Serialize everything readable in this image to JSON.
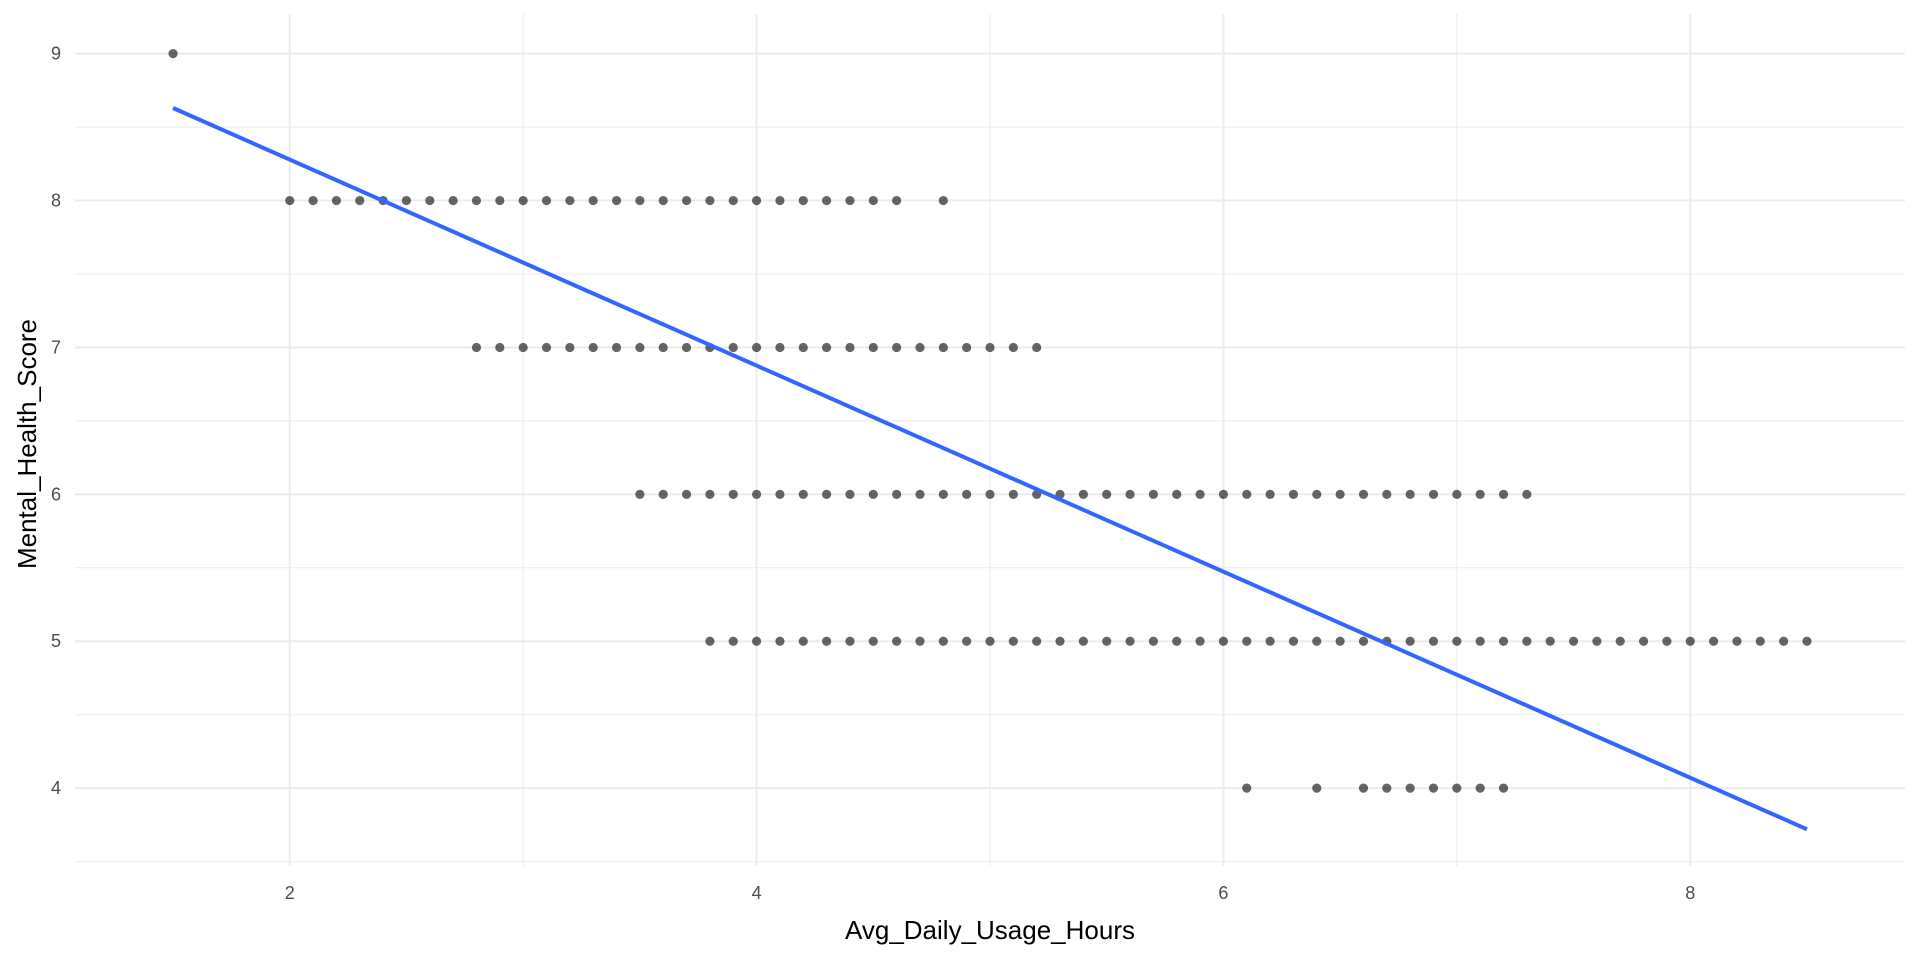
{
  "chart_data": {
    "type": "scatter",
    "title": "",
    "xlabel": "Avg_Daily_Usage_Hours",
    "ylabel": "Mental_Health_Score",
    "xlim": [
      1.08,
      8.92
    ],
    "ylim": [
      3.47,
      9.27
    ],
    "x_ticks": [
      "2",
      "4",
      "6",
      "8"
    ],
    "y_ticks": [
      "4",
      "5",
      "6",
      "7",
      "8",
      "9"
    ],
    "grid": true,
    "colors": {
      "points": "#000000",
      "trend": "#3366ff",
      "grid": "#ebebeb",
      "tick_text": "#4d4d4d"
    },
    "series": [
      {
        "points": [
          [
            1.5,
            9
          ]
        ]
      },
      {
        "points": [
          [
            2.0,
            8
          ],
          [
            2.1,
            8
          ],
          [
            2.2,
            8
          ],
          [
            2.3,
            8
          ],
          [
            2.4,
            8
          ],
          [
            2.5,
            8
          ],
          [
            2.6,
            8
          ],
          [
            2.7,
            8
          ],
          [
            2.8,
            8
          ],
          [
            2.9,
            8
          ],
          [
            3.0,
            8
          ],
          [
            3.1,
            8
          ],
          [
            3.2,
            8
          ],
          [
            3.3,
            8
          ],
          [
            3.4,
            8
          ],
          [
            3.5,
            8
          ],
          [
            3.6,
            8
          ],
          [
            3.7,
            8
          ],
          [
            3.8,
            8
          ],
          [
            3.9,
            8
          ],
          [
            4.0,
            8
          ],
          [
            4.1,
            8
          ],
          [
            4.2,
            8
          ],
          [
            4.3,
            8
          ],
          [
            4.4,
            8
          ],
          [
            4.5,
            8
          ],
          [
            4.6,
            8
          ],
          [
            4.8,
            8
          ]
        ]
      },
      {
        "points": [
          [
            2.8,
            7
          ],
          [
            2.9,
            7
          ],
          [
            3.0,
            7
          ],
          [
            3.1,
            7
          ],
          [
            3.2,
            7
          ],
          [
            3.3,
            7
          ],
          [
            3.4,
            7
          ],
          [
            3.5,
            7
          ],
          [
            3.6,
            7
          ],
          [
            3.7,
            7
          ],
          [
            3.8,
            7
          ],
          [
            3.9,
            7
          ],
          [
            4.0,
            7
          ],
          [
            4.1,
            7
          ],
          [
            4.2,
            7
          ],
          [
            4.3,
            7
          ],
          [
            4.4,
            7
          ],
          [
            4.5,
            7
          ],
          [
            4.6,
            7
          ],
          [
            4.7,
            7
          ],
          [
            4.8,
            7
          ],
          [
            4.9,
            7
          ],
          [
            5.0,
            7
          ],
          [
            5.1,
            7
          ],
          [
            5.2,
            7
          ]
        ]
      },
      {
        "points": [
          [
            3.5,
            6
          ],
          [
            3.6,
            6
          ],
          [
            3.7,
            6
          ],
          [
            3.8,
            6
          ],
          [
            3.9,
            6
          ],
          [
            4.0,
            6
          ],
          [
            4.1,
            6
          ],
          [
            4.2,
            6
          ],
          [
            4.3,
            6
          ],
          [
            4.4,
            6
          ],
          [
            4.5,
            6
          ],
          [
            4.6,
            6
          ],
          [
            4.7,
            6
          ],
          [
            4.8,
            6
          ],
          [
            4.9,
            6
          ],
          [
            5.0,
            6
          ],
          [
            5.1,
            6
          ],
          [
            5.2,
            6
          ],
          [
            5.3,
            6
          ],
          [
            5.4,
            6
          ],
          [
            5.5,
            6
          ],
          [
            5.6,
            6
          ],
          [
            5.7,
            6
          ],
          [
            5.8,
            6
          ],
          [
            5.9,
            6
          ],
          [
            6.0,
            6
          ],
          [
            6.1,
            6
          ],
          [
            6.2,
            6
          ],
          [
            6.3,
            6
          ],
          [
            6.4,
            6
          ],
          [
            6.5,
            6
          ],
          [
            6.6,
            6
          ],
          [
            6.7,
            6
          ],
          [
            6.8,
            6
          ],
          [
            6.9,
            6
          ],
          [
            7.0,
            6
          ],
          [
            7.1,
            6
          ],
          [
            7.2,
            6
          ],
          [
            7.3,
            6
          ]
        ]
      },
      {
        "points": [
          [
            3.8,
            5
          ],
          [
            3.9,
            5
          ],
          [
            4.0,
            5
          ],
          [
            4.1,
            5
          ],
          [
            4.2,
            5
          ],
          [
            4.3,
            5
          ],
          [
            4.4,
            5
          ],
          [
            4.5,
            5
          ],
          [
            4.6,
            5
          ],
          [
            4.7,
            5
          ],
          [
            4.8,
            5
          ],
          [
            4.9,
            5
          ],
          [
            5.0,
            5
          ],
          [
            5.1,
            5
          ],
          [
            5.2,
            5
          ],
          [
            5.3,
            5
          ],
          [
            5.4,
            5
          ],
          [
            5.5,
            5
          ],
          [
            5.6,
            5
          ],
          [
            5.7,
            5
          ],
          [
            5.8,
            5
          ],
          [
            5.9,
            5
          ],
          [
            6.0,
            5
          ],
          [
            6.1,
            5
          ],
          [
            6.2,
            5
          ],
          [
            6.3,
            5
          ],
          [
            6.4,
            5
          ],
          [
            6.5,
            5
          ],
          [
            6.6,
            5
          ],
          [
            6.7,
            5
          ],
          [
            6.8,
            5
          ],
          [
            6.9,
            5
          ],
          [
            7.0,
            5
          ],
          [
            7.1,
            5
          ],
          [
            7.2,
            5
          ],
          [
            7.3,
            5
          ],
          [
            7.4,
            5
          ],
          [
            7.5,
            5
          ],
          [
            7.6,
            5
          ],
          [
            7.7,
            5
          ],
          [
            7.8,
            5
          ],
          [
            7.9,
            5
          ],
          [
            8.0,
            5
          ],
          [
            8.1,
            5
          ],
          [
            8.2,
            5
          ],
          [
            8.3,
            5
          ],
          [
            8.4,
            5
          ],
          [
            8.5,
            5
          ]
        ]
      },
      {
        "points": [
          [
            6.1,
            4
          ],
          [
            6.4,
            4
          ],
          [
            6.6,
            4
          ],
          [
            6.7,
            4
          ],
          [
            6.8,
            4
          ],
          [
            6.9,
            4
          ],
          [
            7.0,
            4
          ],
          [
            7.1,
            4
          ],
          [
            7.2,
            4
          ]
        ]
      }
    ],
    "trend_line": {
      "x": [
        1.5,
        8.5
      ],
      "y": [
        8.63,
        3.72
      ]
    }
  }
}
